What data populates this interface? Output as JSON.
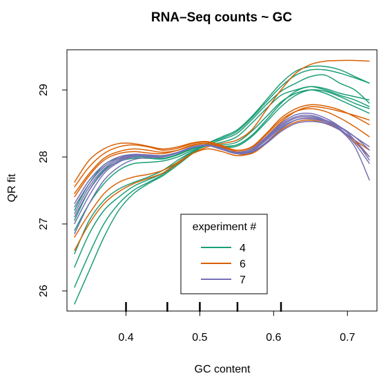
{
  "chart_data": {
    "type": "line",
    "title": "RNA–Seq counts ~ GC",
    "xlabel": "GC content",
    "ylabel": "QR fit",
    "xlim": [
      0.32,
      0.74
    ],
    "ylim": [
      25.7,
      29.6
    ],
    "xticks": [
      0.4,
      0.5,
      0.6,
      0.7
    ],
    "xtick_labels": [
      "0.4",
      "0.5",
      "0.6",
      "0.7"
    ],
    "yticks": [
      26,
      27,
      28,
      29
    ],
    "ytick_labels": [
      "26",
      "27",
      "28",
      "29"
    ],
    "rug": [
      0.4,
      0.456,
      0.5,
      0.551,
      0.61
    ],
    "legend": {
      "title": "experiment #",
      "placement": "bottom-center"
    },
    "x": [
      0.33,
      0.35,
      0.37,
      0.39,
      0.41,
      0.43,
      0.45,
      0.47,
      0.49,
      0.51,
      0.53,
      0.55,
      0.57,
      0.59,
      0.61,
      0.63,
      0.65,
      0.67,
      0.69,
      0.71,
      0.73
    ],
    "series": [
      {
        "name": "4",
        "color": "#1b9e77",
        "lines": [
          [
            25.8,
            26.3,
            26.8,
            27.2,
            27.45,
            27.6,
            27.72,
            27.88,
            28.05,
            28.2,
            28.3,
            28.4,
            28.6,
            28.85,
            29.1,
            29.28,
            29.35,
            29.35,
            29.3,
            29.2,
            29.1
          ],
          [
            26.05,
            26.55,
            27.0,
            27.3,
            27.5,
            27.62,
            27.74,
            27.9,
            28.06,
            28.2,
            28.28,
            28.38,
            28.58,
            28.82,
            29.05,
            29.22,
            29.3,
            29.3,
            29.25,
            29.18,
            29.1
          ],
          [
            26.35,
            26.85,
            27.2,
            27.4,
            27.56,
            27.66,
            27.76,
            27.92,
            28.07,
            28.18,
            28.26,
            28.35,
            28.55,
            28.78,
            28.98,
            29.1,
            29.2,
            29.22,
            29.1,
            29.0,
            28.8
          ],
          [
            26.55,
            27.05,
            27.35,
            27.52,
            27.62,
            27.7,
            27.8,
            27.95,
            28.08,
            28.17,
            28.22,
            28.3,
            28.5,
            28.72,
            28.92,
            29.0,
            29.05,
            29.0,
            28.92,
            28.85,
            28.75
          ],
          [
            26.9,
            27.3,
            27.6,
            27.8,
            27.9,
            27.92,
            27.94,
            28.0,
            28.1,
            28.17,
            28.18,
            28.22,
            28.38,
            28.6,
            28.82,
            28.95,
            29.0,
            28.95,
            28.85,
            28.75,
            28.65
          ],
          [
            27.05,
            27.5,
            27.8,
            27.93,
            27.98,
            27.98,
            27.97,
            28.03,
            28.12,
            28.17,
            28.16,
            28.18,
            28.32,
            28.55,
            28.8,
            28.98,
            29.05,
            29.02,
            28.95,
            28.9,
            28.85
          ],
          [
            27.2,
            27.6,
            27.88,
            27.98,
            28.0,
            28.0,
            27.98,
            28.04,
            28.13,
            28.17,
            28.15,
            28.16,
            28.3,
            28.52,
            28.75,
            28.92,
            29.0,
            28.98,
            28.9,
            28.8,
            28.72
          ]
        ]
      },
      {
        "name": "6",
        "color": "#d95f02",
        "lines": [
          [
            26.6,
            27.0,
            27.3,
            27.48,
            27.6,
            27.68,
            27.76,
            27.9,
            28.05,
            28.15,
            28.2,
            28.25,
            28.4,
            28.7,
            29.0,
            29.25,
            29.38,
            29.43,
            29.44,
            29.44,
            29.43
          ],
          [
            27.45,
            27.75,
            27.98,
            28.08,
            28.12,
            28.1,
            28.07,
            28.1,
            28.17,
            28.2,
            28.15,
            28.08,
            28.12,
            28.3,
            28.52,
            28.68,
            28.75,
            28.73,
            28.68,
            28.62,
            28.55
          ],
          [
            27.55,
            27.85,
            28.05,
            28.15,
            28.18,
            28.15,
            28.1,
            28.13,
            28.2,
            28.22,
            28.16,
            28.1,
            28.15,
            28.35,
            28.58,
            28.72,
            28.78,
            28.76,
            28.7,
            28.6,
            28.48
          ],
          [
            27.62,
            27.95,
            28.12,
            28.2,
            28.2,
            28.16,
            28.12,
            28.15,
            28.21,
            28.23,
            28.17,
            28.1,
            28.14,
            28.33,
            28.55,
            28.68,
            28.72,
            28.68,
            28.58,
            28.45,
            28.3
          ],
          [
            27.4,
            27.72,
            27.95,
            28.05,
            28.08,
            28.06,
            28.05,
            28.1,
            28.18,
            28.2,
            28.14,
            28.05,
            28.05,
            28.2,
            28.4,
            28.52,
            28.55,
            28.5,
            28.4,
            28.25,
            28.1
          ],
          [
            26.8,
            27.15,
            27.45,
            27.62,
            27.7,
            27.74,
            27.8,
            27.92,
            28.05,
            28.12,
            28.08,
            28.02,
            28.06,
            28.22,
            28.42,
            28.55,
            28.58,
            28.52,
            28.4,
            28.22,
            28.0
          ]
        ]
      },
      {
        "name": "7",
        "color": "#7570b3",
        "lines": [
          [
            27.3,
            27.65,
            27.88,
            28.0,
            28.04,
            28.03,
            28.02,
            28.06,
            28.14,
            28.17,
            28.11,
            28.05,
            28.1,
            28.28,
            28.48,
            28.6,
            28.62,
            28.55,
            28.4,
            28.15,
            27.65
          ],
          [
            27.0,
            27.42,
            27.75,
            27.92,
            28.0,
            28.02,
            28.02,
            28.07,
            28.15,
            28.18,
            28.12,
            28.07,
            28.12,
            28.3,
            28.5,
            28.63,
            28.65,
            28.58,
            28.45,
            28.25,
            27.95
          ],
          [
            26.85,
            27.3,
            27.65,
            27.85,
            27.96,
            27.99,
            28.0,
            28.06,
            28.14,
            28.17,
            28.12,
            28.06,
            28.1,
            28.27,
            28.46,
            28.58,
            28.6,
            28.55,
            28.45,
            28.3,
            28.1
          ],
          [
            27.15,
            27.55,
            27.82,
            27.96,
            28.02,
            28.02,
            28.01,
            28.06,
            28.14,
            28.18,
            28.13,
            28.06,
            28.09,
            28.25,
            28.44,
            28.55,
            28.58,
            28.54,
            28.44,
            28.3,
            28.15
          ],
          [
            27.25,
            27.6,
            27.85,
            27.98,
            28.03,
            28.03,
            28.02,
            28.07,
            28.15,
            28.18,
            28.13,
            28.06,
            28.08,
            28.22,
            28.42,
            28.55,
            28.57,
            28.52,
            28.42,
            28.2,
            27.9
          ],
          [
            27.1,
            27.5,
            27.78,
            27.94,
            28.01,
            28.01,
            28.0,
            28.06,
            28.14,
            28.17,
            28.12,
            28.05,
            28.07,
            28.2,
            28.38,
            28.5,
            28.53,
            28.5,
            28.4,
            28.25,
            28.0
          ]
        ]
      }
    ]
  }
}
